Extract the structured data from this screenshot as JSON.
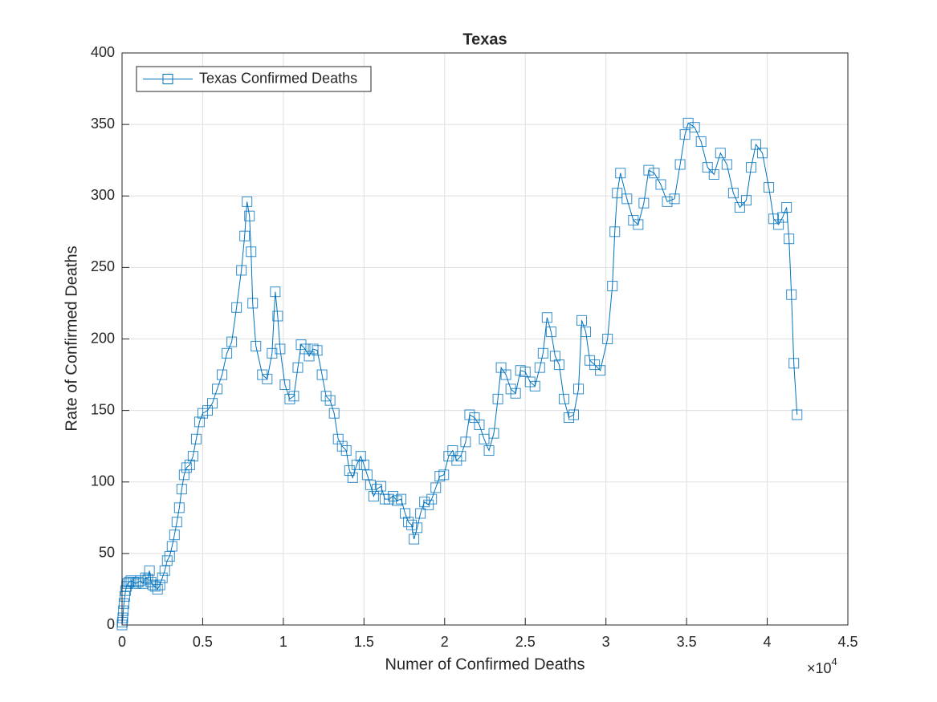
{
  "chart_data": {
    "type": "line",
    "title": "Texas",
    "x_label": "Numer of Confirmed Deaths",
    "y_label": "Rate of Confirmed Deaths",
    "x_exponent_base": "×10",
    "x_exponent_power": "4",
    "marker": "square",
    "grid": true,
    "legend": "upper left",
    "x": [
      0,
      20,
      50,
      80,
      120,
      170,
      220,
      280,
      350,
      450,
      550,
      700,
      850,
      1000,
      1150,
      1300,
      1450,
      1600,
      1700,
      1800,
      1900,
      2050,
      2200,
      2350,
      2500,
      2650,
      2800,
      2950,
      3100,
      3250,
      3400,
      3550,
      3700,
      3850,
      4000,
      4200,
      4400,
      4600,
      4800,
      5000,
      5300,
      5600,
      5900,
      6200,
      6500,
      6800,
      7100,
      7400,
      7600,
      7750,
      7900,
      8000,
      8100,
      8300,
      8700,
      9000,
      9300,
      9500,
      9650,
      9800,
      10100,
      10400,
      10650,
      10900,
      11100,
      11350,
      11600,
      11850,
      12100,
      12400,
      12650,
      12900,
      13150,
      13400,
      13650,
      13900,
      14100,
      14300,
      14550,
      14800,
      15000,
      15200,
      15400,
      15600,
      15800,
      16050,
      16300,
      16550,
      16800,
      17050,
      17300,
      17550,
      17750,
      17950,
      18100,
      18300,
      18500,
      18750,
      19000,
      19200,
      19450,
      19700,
      19950,
      20250,
      20500,
      20750,
      21000,
      21300,
      21550,
      21850,
      22150,
      22450,
      22750,
      23050,
      23300,
      23500,
      23800,
      24100,
      24400,
      24700,
      25000,
      25300,
      25600,
      25900,
      26100,
      26350,
      26600,
      26850,
      27100,
      27400,
      27700,
      28000,
      28300,
      28500,
      28750,
      29000,
      29300,
      29650,
      30100,
      30400,
      30550,
      30700,
      30900,
      31300,
      31700,
      32000,
      32350,
      32650,
      33000,
      33400,
      33800,
      34250,
      34600,
      34900,
      35100,
      35500,
      35900,
      36300,
      36700,
      37100,
      37500,
      37900,
      38300,
      38700,
      39000,
      39300,
      39700,
      40100,
      40400,
      40700,
      40950,
      41200,
      41350,
      41500,
      41650,
      41850
    ],
    "series": [
      {
        "name": "Texas Confirmed Deaths",
        "color": "#0072bd",
        "values": [
          0,
          2,
          5,
          10,
          15,
          20,
          24,
          27,
          29,
          30,
          31,
          30,
          29,
          30,
          31,
          29,
          33,
          32,
          38,
          30,
          28,
          27,
          25,
          28,
          33,
          38,
          45,
          48,
          55,
          63,
          72,
          82,
          95,
          105,
          110,
          112,
          118,
          130,
          142,
          148,
          150,
          155,
          165,
          175,
          190,
          198,
          222,
          248,
          272,
          296,
          286,
          261,
          225,
          195,
          175,
          172,
          190,
          233,
          216,
          193,
          168,
          158,
          160,
          180,
          196,
          193,
          188,
          193,
          192,
          175,
          160,
          157,
          148,
          130,
          125,
          122,
          108,
          103,
          112,
          118,
          112,
          105,
          98,
          90,
          95,
          97,
          88,
          88,
          90,
          87,
          88,
          78,
          72,
          70,
          60,
          68,
          78,
          86,
          84,
          88,
          96,
          104,
          105,
          118,
          122,
          115,
          118,
          128,
          147,
          145,
          140,
          130,
          122,
          134,
          158,
          180,
          175,
          165,
          162,
          178,
          177,
          170,
          167,
          180,
          190,
          215,
          205,
          188,
          182,
          158,
          145,
          147,
          165,
          213,
          205,
          185,
          182,
          178,
          200,
          237,
          275,
          302,
          316,
          298,
          283,
          280,
          295,
          318,
          316,
          308,
          296,
          298,
          322,
          343,
          351,
          348,
          338,
          320,
          315,
          330,
          322,
          302,
          292,
          297,
          320,
          336,
          330,
          306,
          284,
          280,
          285,
          292,
          270,
          231,
          183,
          147
        ]
      }
    ],
    "xlim": [
      0,
      45000
    ],
    "xticks": [
      0,
      {
        "value": 5000,
        "label": "0.5"
      },
      {
        "value": 10000,
        "label": "1"
      },
      {
        "value": 15000,
        "label": "1.5"
      },
      {
        "value": 20000,
        "label": "2"
      },
      {
        "value": 25000,
        "label": "2.5"
      },
      {
        "value": 30000,
        "label": "3"
      },
      {
        "value": 35000,
        "label": "3.5"
      },
      {
        "value": 40000,
        "label": "4"
      },
      {
        "value": 45000,
        "label": "4.5"
      }
    ],
    "ylim": [
      0,
      400
    ],
    "yticks": [
      0,
      50,
      100,
      150,
      200,
      250,
      300,
      350,
      400
    ]
  }
}
